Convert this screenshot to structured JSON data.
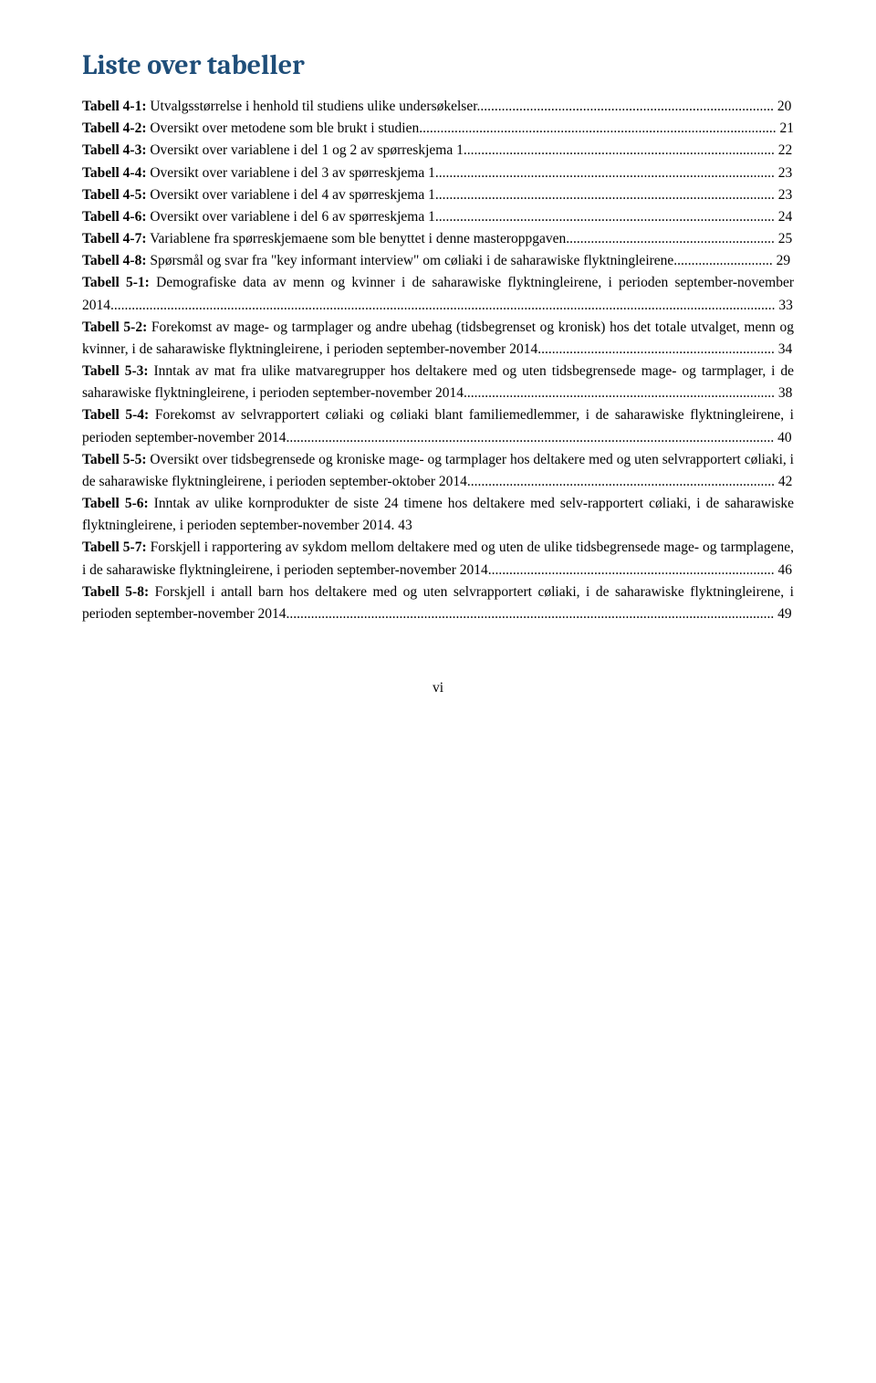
{
  "title": "Liste over tabeller",
  "entries": [
    {
      "label": "Tabell 4-1:",
      "text": " Utvalgsstørrelse i henhold til studiens ulike undersøkelser",
      "page": "20"
    },
    {
      "label": "Tabell 4-2:",
      "text": " Oversikt over metodene som ble brukt i studien",
      "page": "21"
    },
    {
      "label": "Tabell 4-3:",
      "text": " Oversikt over variablene i del 1 og 2 av spørreskjema 1",
      "page": "22"
    },
    {
      "label": "Tabell 4-4:",
      "text": " Oversikt over variablene i del 3 av spørreskjema 1",
      "page": "23"
    },
    {
      "label": "Tabell 4-5:",
      "text": " Oversikt over variablene i del 4 av spørreskjema 1",
      "page": "23"
    },
    {
      "label": "Tabell 4-6:",
      "text": " Oversikt over variablene i del 6 av spørreskjema 1",
      "page": "24"
    },
    {
      "label": "Tabell 4-7:",
      "text": " Variablene fra spørreskjemaene som ble benyttet i denne masteroppgaven",
      "page": "25"
    },
    {
      "label": "Tabell 4-8:",
      "text": " Spørsmål og svar fra \"key informant interview\" om cøliaki i de saharawiske flyktningleirene",
      "page": "29"
    },
    {
      "label": "Tabell 5-1:",
      "text": " Demografiske data av menn og kvinner i de saharawiske flyktningleirene, i perioden september-november 2014",
      "page": "33"
    },
    {
      "label": "Tabell 5-2:",
      "text": " Forekomst av mage- og tarmplager og andre ubehag (tidsbegrenset og kronisk) hos det totale utvalget, menn og kvinner, i de saharawiske flyktningleirene, i perioden september-november 2014",
      "page": "34"
    },
    {
      "label": "Tabell 5-3:",
      "text": " Inntak av mat fra ulike matvaregrupper hos deltakere med og uten tidsbegrensede mage- og tarmplager, i de saharawiske flyktningleirene, i perioden september-november 2014",
      "page": "38"
    },
    {
      "label": "Tabell 5-4:",
      "text": " Forekomst av selvrapportert cøliaki og cøliaki blant familiemedlemmer, i de saharawiske flyktningleirene, i perioden september-november 2014",
      "page": "40"
    },
    {
      "label": "Tabell 5-5:",
      "text": " Oversikt over tidsbegrensede og kroniske mage- og tarmplager hos deltakere med og uten selvrapportert cøliaki, i de saharawiske flyktningleirene, i perioden september-oktober 2014",
      "page": "42"
    },
    {
      "label": "Tabell 5-6:",
      "text": " Inntak av ulike kornprodukter de siste 24 timene hos deltakere med selv-rapportert cøliaki, i de saharawiske flyktningleirene, i perioden september-november 2014",
      "page": "43",
      "nodots": true
    },
    {
      "label": "Tabell 5-7:",
      "text": " Forskjell i rapportering av sykdom mellom deltakere med og uten de ulike tidsbegrensede mage- og tarmplagene, i de saharawiske flyktningleirene, i perioden september-november 2014",
      "page": "46"
    },
    {
      "label": "Tabell 5-8:",
      "text": " Forskjell i antall barn hos deltakere med og uten selvrapportert cøliaki, i de saharawiske flyktningleirene, i perioden september-november 2014",
      "page": "49"
    }
  ],
  "page_roman": "vi",
  "colors": {
    "heading": "#1f4e79",
    "body": "#000000",
    "bg": "#ffffff"
  }
}
